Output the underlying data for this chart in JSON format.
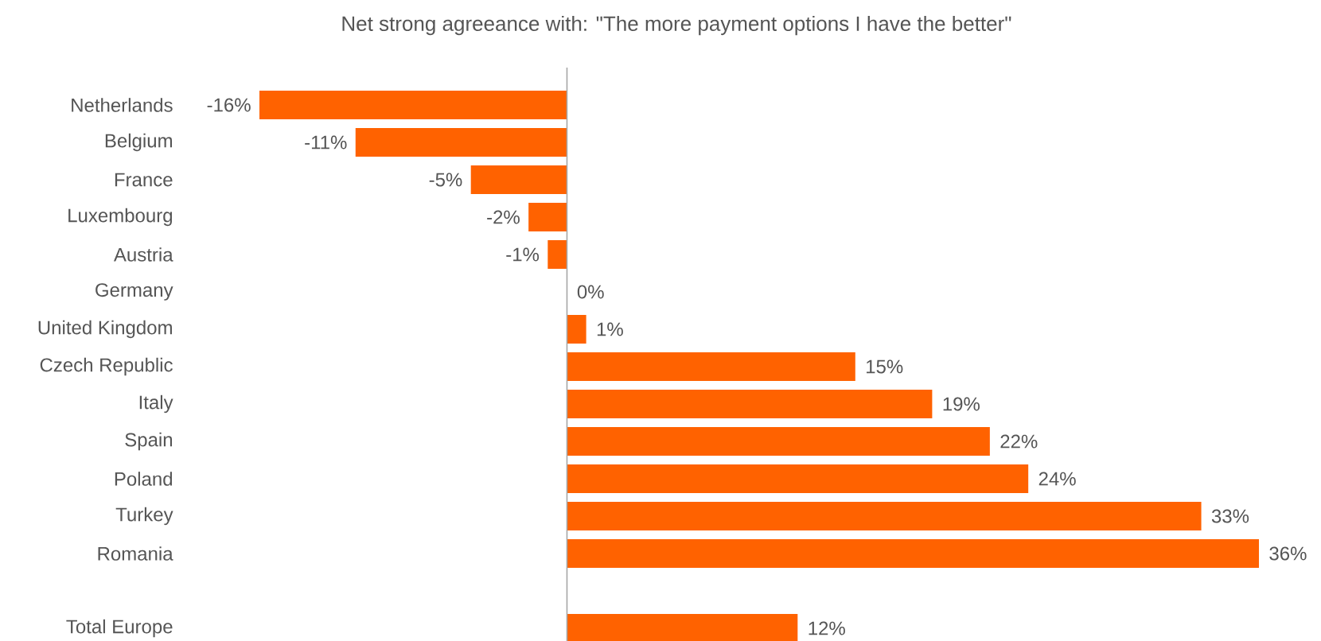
{
  "chart_data": {
    "type": "bar",
    "orientation": "horizontal",
    "title": "Net strong agreeance with: \"The more payment options I have the better\"",
    "categories": [
      "Netherlands",
      "Belgium",
      "France",
      "Luxembourg",
      "Austria",
      "Germany",
      "United Kingdom",
      "Czech Republic",
      "Italy",
      "Spain",
      "Poland",
      "Turkey",
      "Romania",
      null,
      "Total Europe"
    ],
    "values": [
      -16,
      -11,
      -5,
      -2,
      -1,
      0,
      1,
      15,
      19,
      22,
      24,
      33,
      36,
      null,
      12
    ],
    "value_labels": [
      "-16%",
      "-11%",
      "-5%",
      "-2%",
      "-1%",
      "0%",
      "1%",
      "15%",
      "19%",
      "22%",
      "24%",
      "33%",
      "36%",
      null,
      "12%"
    ],
    "color": "#ff6200"
  }
}
